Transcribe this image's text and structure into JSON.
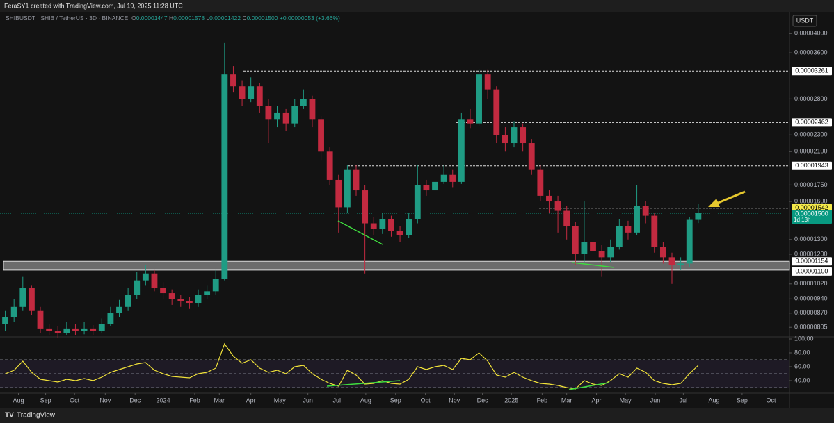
{
  "header": {
    "credit": "FeraSY1 created with TradingView.com, Jul 19, 2025 11:28 UTC",
    "currency": "USDT"
  },
  "footer": {
    "brand": "TradingView"
  },
  "chart_data": [
    {
      "type": "candlestick",
      "log_scale": true,
      "legend": {
        "o_key": "O",
        "open": "0.00001447",
        "h_key": "H",
        "high": "0.00001578",
        "l_key": "L",
        "low": "0.00001422",
        "c_key": "C",
        "close": "0.00001500",
        "change": "+0.00000053 (+3.66%)"
      },
      "series": [
        {
          "name": "SHIBUSDT · SHIB / TetherUS · 3D · BINANCE",
          "up_color": "#1f9c84",
          "down_color": "#c22a40",
          "open": [
            8.2e-06,
            8.5e-06,
            9e-06,
            1e-05,
            8.8e-06,
            8e-06,
            7.9e-06,
            7.8e-06,
            8e-06,
            7.9e-06,
            8e-06,
            7.9e-06,
            8.2e-06,
            8.7e-06,
            9e-06,
            9.6e-06,
            1.04e-05,
            1.08e-05,
            1e-05,
            9.7e-06,
            9.4e-06,
            9.3e-06,
            9.2e-06,
            9.6e-06,
            9.8e-06,
            1.05e-05,
            3.2e-05,
            3e-05,
            2.8e-05,
            3e-05,
            2.7e-05,
            2.5e-05,
            2.6e-05,
            2.45e-05,
            2.7e-05,
            2.8e-05,
            2.5e-05,
            2.1e-05,
            1.8e-05,
            1.55e-05,
            1.9e-05,
            1.7e-05,
            1.42e-05,
            1.38e-05,
            1.45e-05,
            1.36e-05,
            1.33e-05,
            1.45e-05,
            1.75e-05,
            1.7e-05,
            1.78e-05,
            1.85e-05,
            1.78e-05,
            2.5e-05,
            2.45e-05,
            3.2e-05,
            2.95e-05,
            2.3e-05,
            2.2e-05,
            2.4e-05,
            2.2e-05,
            1.9e-05,
            1.65e-05,
            1.6e-05,
            1.52e-05,
            1.4e-05,
            1.2e-05,
            1.28e-05,
            1.22e-05,
            1.18e-05,
            1.25e-05,
            1.4e-05,
            1.35e-05,
            1.56e-05,
            1.48e-05,
            1.25e-05,
            1.18e-05,
            1.13e-05,
            1.14e-05,
            1.447e-05
          ],
          "high": [
            8.8e-06,
            9.4e-06,
            1.06e-05,
            1.01e-05,
            9e-06,
            8.2e-06,
            8.1e-06,
            8.3e-06,
            8.2e-06,
            8.3e-06,
            8.15e-06,
            8.45e-06,
            9e-06,
            9.35e-06,
            1e-05,
            1.09e-05,
            1.13e-05,
            1.1e-05,
            1.03e-05,
            9.9e-06,
            9.6e-06,
            9.5e-06,
            9.9e-06,
            1.01e-05,
            1.1e-05,
            3.8e-05,
            3.35e-05,
            3.1e-05,
            3.15e-05,
            3.05e-05,
            2.8e-05,
            2.7e-05,
            2.65e-05,
            2.8e-05,
            2.95e-05,
            2.85e-05,
            2.55e-05,
            2.15e-05,
            1.85e-05,
            1.95e-05,
            1.95e-05,
            1.75e-05,
            1.47e-05,
            1.5e-05,
            1.48e-05,
            1.4e-05,
            1.5e-05,
            1.95e-05,
            1.8e-05,
            1.83e-05,
            1.95e-05,
            1.9e-05,
            2.6e-05,
            2.65e-05,
            3.3e-05,
            3.28e-05,
            3e-05,
            2.4e-05,
            2.48e-05,
            2.45e-05,
            2.25e-05,
            1.95e-05,
            1.7e-05,
            1.65e-05,
            1.56e-05,
            1.43e-05,
            1.6e-05,
            1.32e-05,
            1.26e-05,
            1.3e-05,
            1.45e-05,
            1.44e-05,
            1.75e-05,
            1.6e-05,
            1.5e-05,
            1.28e-05,
            1.21e-05,
            1.18e-05,
            1.47e-05,
            1.578e-05
          ],
          "low": [
            7.9e-06,
            8.3e-06,
            8.8e-06,
            8.6e-06,
            7.8e-06,
            7.7e-06,
            7.6e-06,
            7.7e-06,
            7.7e-06,
            7.75e-06,
            7.7e-06,
            7.8e-06,
            8.1e-06,
            8.5e-06,
            8.8e-06,
            9.4e-06,
            1.01e-05,
            9.8e-06,
            9.4e-06,
            9.1e-06,
            9e-06,
            8.9e-06,
            9e-06,
            9.4e-06,
            9.6e-06,
            1.04e-05,
            2.9e-05,
            2.7e-05,
            2.75e-05,
            2.6e-05,
            2.2e-05,
            2.4e-05,
            2.35e-05,
            2.4e-05,
            2.65e-05,
            2.4e-05,
            2e-05,
            1.75e-05,
            1.35e-05,
            1.5e-05,
            1.65e-05,
            1.08e-05,
            1.33e-05,
            1.34e-05,
            1.32e-05,
            1.28e-05,
            1.31e-05,
            1.42e-05,
            1.65e-05,
            1.68e-05,
            1.76e-05,
            1.73e-05,
            1.76e-05,
            2.38e-05,
            2.42e-05,
            2.8e-05,
            2.2e-05,
            2.1e-05,
            2.15e-05,
            2.1e-05,
            1.85e-05,
            1.6e-05,
            1.5e-05,
            1.35e-05,
            1.3e-05,
            1.13e-05,
            1.15e-05,
            1.15e-05,
            1.06e-05,
            1.15e-05,
            1.23e-05,
            1.3e-05,
            1.33e-05,
            1.42e-05,
            1.21e-05,
            1.14e-05,
            1.02e-05,
            1.1e-05,
            1.12e-05,
            1.422e-05
          ],
          "close": [
            8.5e-06,
            9e-06,
            1e-05,
            8.8e-06,
            8e-06,
            7.9e-06,
            7.8e-06,
            8e-06,
            7.9e-06,
            8e-06,
            7.9e-06,
            8.2e-06,
            8.7e-06,
            9e-06,
            9.6e-06,
            1.04e-05,
            1.08e-05,
            1e-05,
            9.7e-06,
            9.4e-06,
            9.3e-06,
            9.2e-06,
            9.6e-06,
            9.8e-06,
            1.05e-05,
            3.2e-05,
            3e-05,
            2.8e-05,
            3e-05,
            2.7e-05,
            2.5e-05,
            2.6e-05,
            2.45e-05,
            2.7e-05,
            2.8e-05,
            2.5e-05,
            2.1e-05,
            1.8e-05,
            1.55e-05,
            1.9e-05,
            1.7e-05,
            1.42e-05,
            1.38e-05,
            1.45e-05,
            1.36e-05,
            1.33e-05,
            1.45e-05,
            1.75e-05,
            1.7e-05,
            1.78e-05,
            1.85e-05,
            1.78e-05,
            2.5e-05,
            2.45e-05,
            3.2e-05,
            2.95e-05,
            2.3e-05,
            2.2e-05,
            2.4e-05,
            2.2e-05,
            1.9e-05,
            1.65e-05,
            1.6e-05,
            1.52e-05,
            1.4e-05,
            1.2e-05,
            1.28e-05,
            1.22e-05,
            1.18e-05,
            1.25e-05,
            1.4e-05,
            1.35e-05,
            1.56e-05,
            1.48e-05,
            1.25e-05,
            1.18e-05,
            1.13e-05,
            1.14e-05,
            1.447e-05,
            1.5e-05
          ]
        }
      ],
      "xlim": [
        -0.6,
        89.4
      ],
      "xticks": [
        {
          "value": 1.5,
          "label": "Aug"
        },
        {
          "value": 4.6,
          "label": "Sep"
        },
        {
          "value": 7.9,
          "label": "Oct"
        },
        {
          "value": 11.4,
          "label": "Nov"
        },
        {
          "value": 14.8,
          "label": "Dec"
        },
        {
          "value": 18.0,
          "label": "2024"
        },
        {
          "value": 21.6,
          "label": "Feb"
        },
        {
          "value": 24.4,
          "label": "Mar"
        },
        {
          "value": 28.0,
          "label": "Apr"
        },
        {
          "value": 31.3,
          "label": "May"
        },
        {
          "value": 34.5,
          "label": "Jun"
        },
        {
          "value": 37.8,
          "label": "Jul"
        },
        {
          "value": 41.1,
          "label": "Aug"
        },
        {
          "value": 44.5,
          "label": "Sep"
        },
        {
          "value": 47.9,
          "label": "Oct"
        },
        {
          "value": 51.2,
          "label": "Nov"
        },
        {
          "value": 54.4,
          "label": "Dec"
        },
        {
          "value": 57.7,
          "label": "2025"
        },
        {
          "value": 61.2,
          "label": "Feb"
        },
        {
          "value": 64.0,
          "label": "Mar"
        },
        {
          "value": 67.4,
          "label": "Apr"
        },
        {
          "value": 70.7,
          "label": "May"
        },
        {
          "value": 74.1,
          "label": "Jun"
        },
        {
          "value": 77.3,
          "label": "Jul"
        },
        {
          "value": 80.8,
          "label": "Aug"
        },
        {
          "value": 84.0,
          "label": "Sep"
        },
        {
          "value": 87.3,
          "label": "Oct"
        }
      ],
      "ylim": [
        7.67e-06,
        4.487e-05
      ],
      "yticks": [
        {
          "value": 4e-05,
          "label": "0.00004000"
        },
        {
          "value": 3.6e-05,
          "label": "0.00003600"
        },
        {
          "value": 2.8e-05,
          "label": "0.00002800"
        },
        {
          "value": 2.3e-05,
          "label": "0.00002300"
        },
        {
          "value": 2.1e-05,
          "label": "0.00002100"
        },
        {
          "value": 1.75e-05,
          "label": "0.00001750"
        },
        {
          "value": 1.6e-05,
          "label": "0.00001600"
        },
        {
          "value": 1.3e-05,
          "label": "0.00001300"
        },
        {
          "value": 1.2e-05,
          "label": "0.00001200"
        },
        {
          "value": 1.02e-05,
          "label": "0.00001020"
        },
        {
          "value": 9.4e-06,
          "label": "0.00000940"
        },
        {
          "value": 8.7e-06,
          "label": "0.00000870"
        },
        {
          "value": 8.05e-06,
          "label": "0.00000805"
        }
      ],
      "levels": [
        {
          "value": 3.261e-05,
          "label": "0.00003261"
        },
        {
          "value": 2.462e-05,
          "label": "0.00002462"
        },
        {
          "value": 1.943e-05,
          "label": "0.00001943"
        },
        {
          "value": 1.542e-05,
          "label": "0.00001542",
          "color": "#f5e94a"
        }
      ],
      "zone": {
        "high": {
          "value": 1.154e-05,
          "label": "0.00001154"
        },
        "low": {
          "value": 1.1e-05,
          "label": "0.00001100"
        },
        "color": "#b7b7b7"
      },
      "last_price": {
        "value": 1.5e-05,
        "label": "0.00001500",
        "countdown": "1d 13h",
        "color": "#089981"
      }
    },
    {
      "type": "line",
      "color": "#f2e33a",
      "xlim": [
        -0.6,
        89.4
      ],
      "values": [
        50,
        55,
        68,
        52,
        42,
        40,
        38,
        42,
        40,
        43,
        40,
        45,
        52,
        56,
        60,
        64,
        66,
        55,
        50,
        46,
        45,
        44,
        50,
        52,
        58,
        93,
        75,
        65,
        70,
        58,
        52,
        55,
        50,
        60,
        62,
        50,
        42,
        36,
        32,
        55,
        48,
        35,
        36,
        40,
        36,
        35,
        42,
        60,
        56,
        60,
        62,
        56,
        72,
        70,
        80,
        68,
        48,
        45,
        52,
        45,
        40,
        36,
        35,
        33,
        30,
        28,
        40,
        35,
        33,
        40,
        50,
        45,
        58,
        52,
        40,
        36,
        34,
        36,
        50,
        62
      ],
      "ylim": [
        23,
        103
      ],
      "yticks": [
        {
          "value": 100,
          "label": "100.00"
        },
        {
          "value": 80,
          "label": "80.00"
        },
        {
          "value": 60,
          "label": "60.00"
        },
        {
          "value": 40,
          "label": "40.00"
        }
      ],
      "band": [
        30,
        70
      ],
      "band_lines": [
        30,
        50,
        70
      ]
    }
  ]
}
